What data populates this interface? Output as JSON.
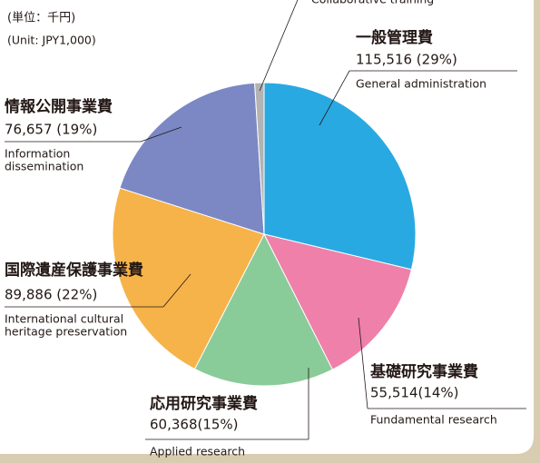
{
  "chart_data": {
    "type": "pie",
    "unit_note": [
      "(単位：千円)",
      "(Unit: JPY1,000)"
    ],
    "categories": [
      "一般管理費",
      "基礎研究事業費",
      "応用研究事業費",
      "国際遺産保護事業費",
      "情報公開事業費",
      null
    ],
    "labels_en": [
      [
        "General administration"
      ],
      [
        "Fundamental research"
      ],
      [
        "Applied research"
      ],
      [
        "International cultural",
        "heritage preservation"
      ],
      [
        "Information",
        "dissemination"
      ],
      [
        "Collaborative training"
      ]
    ],
    "values": [
      115516,
      55514,
      60368,
      89886,
      76657,
      4000
    ],
    "value_labels": [
      "115,516 (29%)",
      "55,514(14%)",
      "60,368(15%)",
      "89,886 (22%)",
      "76,657 (19%)",
      null
    ],
    "colors": [
      "#29a9e1",
      "#ee80a9",
      "#8acb9a",
      "#f6b34a",
      "#7b88c4",
      "#b3b3b3"
    ]
  }
}
